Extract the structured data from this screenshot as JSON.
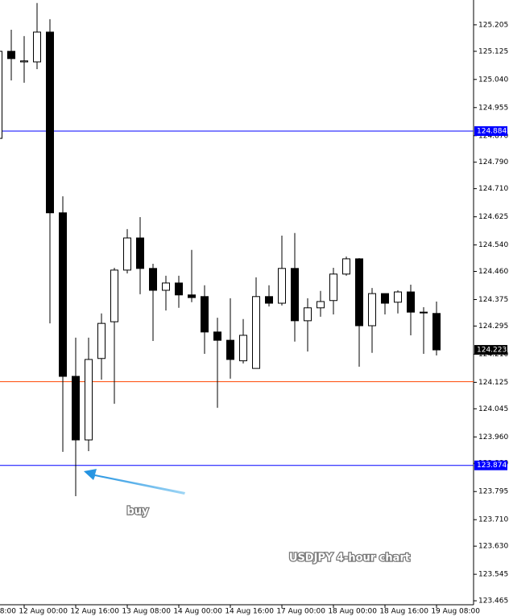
{
  "chart_data": {
    "type": "candlestick",
    "categories": [
      "08:00",
      null,
      null,
      null,
      "12 Aug 00:00",
      null,
      null,
      null,
      "12 Aug 16:00",
      null,
      null,
      null,
      "13 Aug 08:00",
      null,
      null,
      null,
      "14 Aug 00:00",
      null,
      null,
      null,
      "14 Aug 16:00",
      null,
      null,
      null,
      "17 Aug 00:00",
      null,
      null,
      null,
      "18 Aug 00:00",
      null,
      null,
      null,
      "18 Aug 16:00",
      null,
      null,
      null,
      "19 Aug 08:00"
    ],
    "open": [
      null,
      null,
      124.862,
      125.125,
      125.093,
      125.093,
      125.183,
      124.637,
      124.143,
      123.951,
      124.197,
      124.308,
      124.464,
      124.561,
      124.469,
      124.403,
      124.425,
      124.389,
      124.384,
      124.277,
      124.252,
      124.19,
      124.167,
      124.384,
      124.364,
      124.469,
      124.311,
      124.35,
      124.372,
      124.452,
      124.498,
      124.296,
      124.393,
      124.367,
      124.398,
      124.337,
      124.333
    ],
    "high": [
      null,
      null,
      125.159,
      125.19,
      125.171,
      125.271,
      125.222,
      124.687,
      124.26,
      124.26,
      124.333,
      124.471,
      124.588,
      124.624,
      124.483,
      124.447,
      124.447,
      124.525,
      124.418,
      124.32,
      124.379,
      124.316,
      124.442,
      124.418,
      124.568,
      124.576,
      124.379,
      124.401,
      124.471,
      124.505,
      124.5,
      124.41,
      124.393,
      124.403,
      124.42,
      124.352,
      124.369
    ],
    "low": [
      null,
      null,
      124.843,
      125.037,
      125.03,
      125.071,
      124.303,
      123.915,
      123.781,
      123.917,
      124.133,
      124.06,
      124.454,
      124.391,
      124.25,
      124.342,
      124.35,
      124.367,
      124.211,
      124.048,
      124.136,
      124.182,
      124.167,
      124.354,
      124.357,
      124.248,
      124.218,
      124.323,
      124.33,
      124.447,
      124.172,
      124.214,
      124.33,
      124.333,
      124.267,
      124.211,
      124.206
    ],
    "close": [
      null,
      null,
      125.125,
      125.103,
      125.096,
      125.183,
      124.637,
      124.143,
      123.951,
      124.194,
      124.303,
      124.464,
      124.561,
      124.469,
      124.403,
      124.425,
      124.389,
      124.381,
      124.277,
      124.252,
      124.194,
      124.267,
      124.384,
      124.364,
      124.469,
      124.311,
      124.35,
      124.369,
      124.452,
      124.498,
      124.296,
      124.393,
      124.364,
      124.398,
      124.337,
      124.335,
      124.223
    ],
    "up_color": "#ffffff",
    "down_color": "#000000",
    "ylim": [
      123.453,
      125.28
    ],
    "yticks": [
      125.205,
      125.125,
      {
        "value": 125.04,
        "label": "125.040"
      },
      124.955,
      {
        "value": 124.87,
        "label": "124.870"
      },
      {
        "value": 124.79,
        "label": "124.790"
      },
      {
        "value": 124.71,
        "label": "124.710"
      },
      124.625,
      {
        "value": 124.54,
        "label": "124.540"
      },
      {
        "value": 124.46,
        "label": "124.460"
      },
      124.375,
      124.295,
      {
        "value": 124.21,
        "label": "124.210"
      },
      124.125,
      124.045,
      {
        "value": 123.96,
        "label": "123.960"
      },
      {
        "value": 123.88,
        "label": "123.880"
      },
      123.795,
      {
        "value": 123.71,
        "label": "123.710"
      },
      {
        "value": 123.63,
        "label": "123.630"
      },
      123.545,
      123.465
    ],
    "hlines": [
      {
        "value": 124.884,
        "color": "#0000ff",
        "labeled": true
      },
      {
        "value": 124.127,
        "color": "#ff4500",
        "labeled": false
      },
      {
        "value": 123.874,
        "color": "#0000ff",
        "labeled": true
      }
    ],
    "annotations": [
      "buy",
      "USDJPY 4-hour chart"
    ]
  }
}
